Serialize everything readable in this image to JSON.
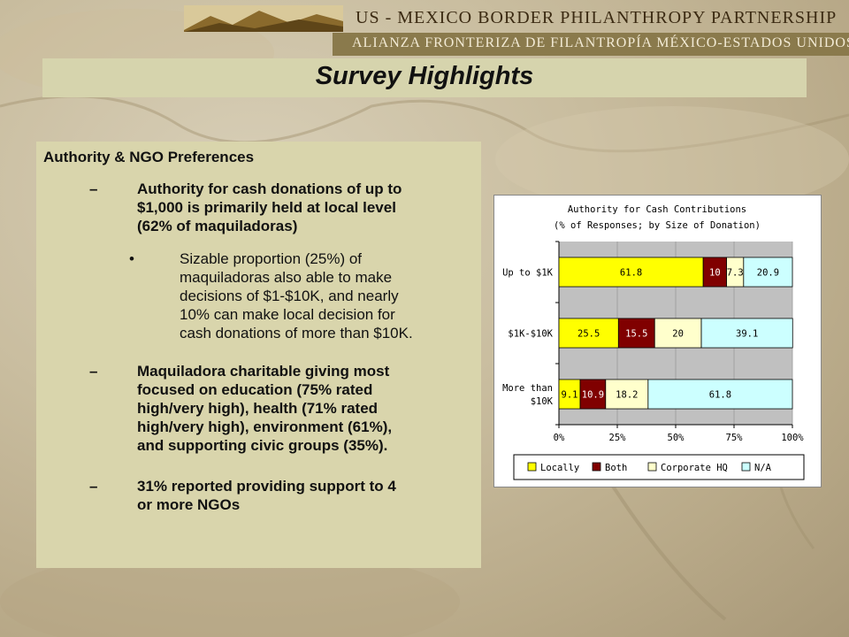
{
  "header": {
    "org_en": "US - MEXICO BORDER PHILANTHROPY PARTNERSHIP",
    "org_es": "ALIANZA FRONTERIZA DE FILANTROPÍA MÉXICO-ESTADOS UNIDOS"
  },
  "slide": {
    "title": "Survey Highlights"
  },
  "content": {
    "heading": "Authority & NGO Preferences",
    "dash": "–",
    "bullet": "•",
    "point1": [
      "Authority for cash donations of up to",
      "$1,000 is primarily held at local level",
      "(62% of maquiladoras)"
    ],
    "subpoint": [
      "Sizable proportion (25%) of",
      "maquiladoras also able to make",
      "decisions of $1-$10K, and nearly",
      "10% can make local decision for",
      "cash donations of more than $10K."
    ],
    "point2": [
      "Maquiladora charitable giving most",
      "focused on education (75% rated",
      "high/very high), health (71% rated",
      "high/very high), environment (61%),",
      "and supporting civic groups (35%)."
    ],
    "point3": [
      "31% reported providing support to 4",
      "or more NGOs"
    ]
  },
  "colors": {
    "locally": "#ffff00",
    "both": "#800000",
    "corporate_hq": "#ffffcc",
    "na": "#ccffff",
    "plot_bg": "#c0c0c0"
  },
  "chart_data": {
    "type": "bar",
    "orientation": "horizontal",
    "stacked": true,
    "title": "Authority for Cash Contributions",
    "subtitle": "(% of Responses; by Size of Donation)",
    "categories": [
      "Up to $1K",
      "$1K-$10K",
      "More than $10K"
    ],
    "category_lines": [
      [
        "Up to $1K"
      ],
      [
        "$1K-$10K"
      ],
      [
        "More than",
        "$10K"
      ]
    ],
    "series": [
      {
        "name": "Locally",
        "values": [
          61.8,
          25.5,
          9.1
        ],
        "labels": [
          "61.8",
          "25.5",
          "9.1"
        ]
      },
      {
        "name": "Both",
        "values": [
          10,
          15.5,
          10.9
        ],
        "labels": [
          "10",
          "15.5",
          "10.9"
        ]
      },
      {
        "name": "Corporate HQ",
        "values": [
          7.3,
          20,
          18.2
        ],
        "labels": [
          "7.3",
          "20",
          "18.2"
        ]
      },
      {
        "name": "N/A",
        "values": [
          20.9,
          39.1,
          61.8
        ],
        "labels": [
          "20.9",
          "39.1",
          "61.8"
        ]
      }
    ],
    "xlim": [
      0,
      100
    ],
    "xticks": [
      "0%",
      "25%",
      "50%",
      "75%",
      "100%"
    ],
    "legend_position": "bottom",
    "grid": true
  }
}
